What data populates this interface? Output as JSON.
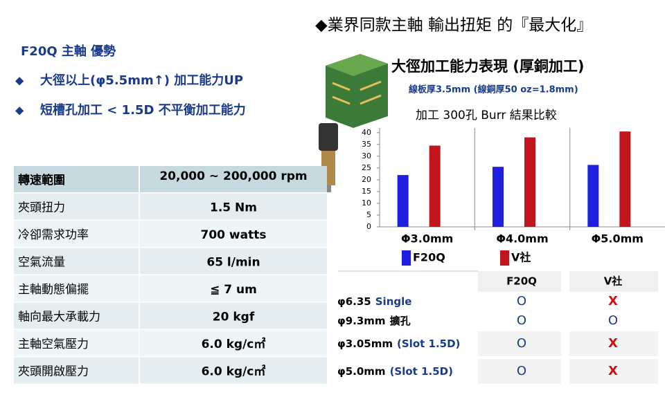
{
  "header": {
    "title": "◆業界同款主軸 輸出扭矩 的『最大化』"
  },
  "advantages": {
    "title": "F20Q 主軸  優勢",
    "items": [
      "大徑以上(φ5.5mm↑)  加工能力UP",
      "短槽孔加工  < 1.5D  不平衡加工能力"
    ]
  },
  "specs": {
    "rows": [
      [
        "轉速範圍",
        "20,000 ~ 200,000 rpm"
      ],
      [
        "夾頭扭力",
        "1.5 Nm"
      ],
      [
        "冷卻需求功率",
        "700 watts"
      ],
      [
        "空氣流量",
        "65  l/min"
      ],
      [
        "主軸動態偏擺",
        "≦ 7 um"
      ],
      [
        "軸向最大承載力",
        "20 kgf"
      ],
      [
        "主軸空氣壓力",
        "6.0 kg/c㎡"
      ],
      [
        "夾頭開啟壓力",
        "6.0 kg/c㎡"
      ]
    ]
  },
  "chart_data": {
    "type": "bar",
    "title": "大徑加工能力表現 (厚銅加工)",
    "subtitle": "線板厚3.5mm (線銅厚50 oz=1.8mm)",
    "plot_title": "加工 300孔 Burr  結果比較",
    "categories": [
      "Φ3.0mm",
      "Φ4.0mm",
      "Φ5.0mm"
    ],
    "series": [
      {
        "name": "F20Q",
        "color": "#1f1fe0",
        "values": [
          22,
          25.5,
          26.3
        ]
      },
      {
        "name": "V社",
        "color": "#c0161c",
        "values": [
          34.5,
          38,
          40.5
        ]
      }
    ],
    "ylim": [
      0,
      42
    ],
    "yticks": [
      0,
      5,
      10,
      15,
      20,
      25,
      30,
      35,
      40
    ]
  },
  "comparison": {
    "columns": [
      "F20Q",
      "V社"
    ],
    "rows": [
      {
        "size": "φ6.35",
        "note": "Single",
        "marks": [
          "O",
          "X"
        ]
      },
      {
        "size": "φ9.3mm",
        "note": "擴孔",
        "marks": [
          "O",
          "O"
        ]
      },
      {
        "size": "φ3.05mm",
        "note": "(Slot 1.5D)",
        "marks": [
          "O",
          "X"
        ]
      },
      {
        "size": "φ5.0mm",
        "note": "(Slot 1.5D)",
        "marks": [
          "O",
          "X"
        ]
      }
    ]
  }
}
